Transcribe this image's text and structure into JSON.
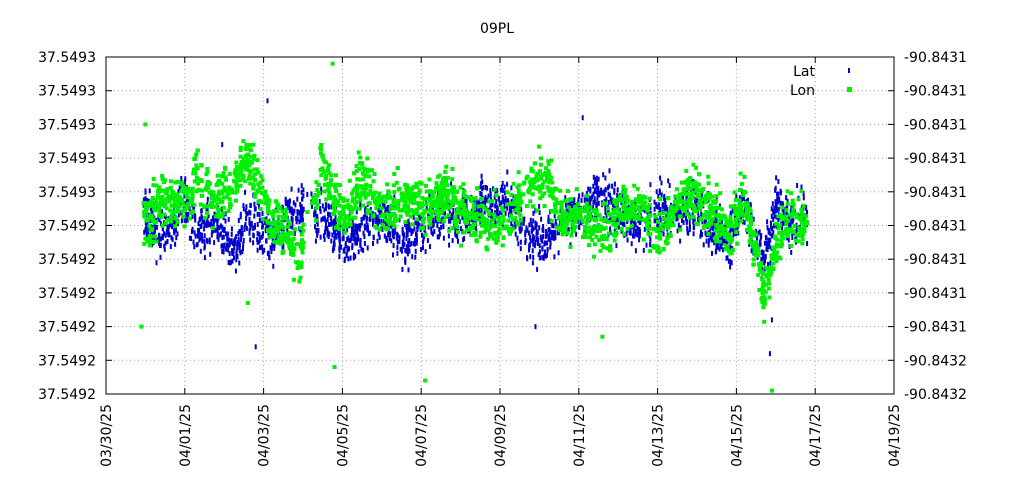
{
  "chart_data": {
    "type": "scatter",
    "title": "09PL",
    "xlabel": "",
    "ylabel": "",
    "grid": true,
    "legend_position": "top-right",
    "x_ticks": [
      "03/30/25",
      "04/01/25",
      "04/03/25",
      "04/05/25",
      "04/07/25",
      "04/09/25",
      "04/11/25",
      "04/13/25",
      "04/15/25",
      "04/17/25",
      "04/19/25"
    ],
    "xlim": [
      "03/30/25",
      "04/19/25"
    ],
    "y_left_ticks": [
      "37.5493",
      "37.5493",
      "37.5493",
      "37.5493",
      "37.5493",
      "37.5492",
      "37.5492",
      "37.5492",
      "37.5492",
      "37.5492",
      "37.5492"
    ],
    "y_right_ticks": [
      "-90.8431",
      "-90.8431",
      "-90.8431",
      "-90.8431",
      "-90.8431",
      "-90.8431",
      "-90.8431",
      "-90.8431",
      "-90.8431",
      "-90.8432",
      "-90.8432"
    ],
    "series": [
      {
        "name": "Lat",
        "axis": "left",
        "color": "#0000cc",
        "marker": "vertical-dash",
        "level_by_day": [
          [
            0.95,
            0.54
          ],
          [
            1.5,
            0.46
          ],
          [
            2.0,
            0.58
          ],
          [
            2.3,
            0.47
          ],
          [
            2.8,
            0.52
          ],
          [
            3.3,
            0.42
          ],
          [
            3.6,
            0.52
          ],
          [
            4.2,
            0.46
          ],
          [
            4.6,
            0.52
          ],
          [
            4.9,
            0.56
          ],
          [
            5.5,
            0.52
          ],
          [
            6.0,
            0.45
          ],
          [
            6.5,
            0.5
          ],
          [
            7.0,
            0.53
          ],
          [
            7.6,
            0.46
          ],
          [
            8.1,
            0.5
          ],
          [
            8.6,
            0.55
          ],
          [
            9.2,
            0.51
          ],
          [
            9.6,
            0.56
          ],
          [
            10.2,
            0.57
          ],
          [
            10.7,
            0.46
          ],
          [
            11.2,
            0.45
          ],
          [
            11.6,
            0.52
          ],
          [
            12.1,
            0.54
          ],
          [
            12.5,
            0.59
          ],
          [
            13.0,
            0.53
          ],
          [
            13.5,
            0.49
          ],
          [
            14.0,
            0.56
          ],
          [
            14.5,
            0.53
          ],
          [
            14.9,
            0.55
          ],
          [
            15.3,
            0.5
          ],
          [
            15.8,
            0.46
          ],
          [
            16.2,
            0.56
          ],
          [
            16.7,
            0.4
          ],
          [
            17.0,
            0.56
          ],
          [
            17.3,
            0.5
          ],
          [
            17.8,
            0.54
          ]
        ],
        "spread": 0.1,
        "outliers": [
          [
            3.8,
            0.14
          ],
          [
            16.9,
            0.22
          ],
          [
            16.85,
            0.12
          ],
          [
            12.1,
            0.82
          ],
          [
            10.9,
            0.2
          ],
          [
            4.1,
            0.87
          ],
          [
            2.95,
            0.74
          ]
        ]
      },
      {
        "name": "Lon",
        "axis": "right",
        "color": "#00ee00",
        "marker": "square",
        "level_by_day": [
          [
            0.95,
            0.5
          ],
          [
            1.5,
            0.59
          ],
          [
            2.0,
            0.56
          ],
          [
            2.3,
            0.63
          ],
          [
            2.8,
            0.58
          ],
          [
            3.3,
            0.63
          ],
          [
            3.6,
            0.7
          ],
          [
            4.2,
            0.51
          ],
          [
            4.6,
            0.48
          ],
          [
            4.9,
            0.4
          ],
          [
            5.5,
            0.67
          ],
          [
            6.0,
            0.52
          ],
          [
            6.5,
            0.64
          ],
          [
            7.0,
            0.54
          ],
          [
            7.6,
            0.58
          ],
          [
            8.1,
            0.55
          ],
          [
            8.6,
            0.6
          ],
          [
            9.2,
            0.52
          ],
          [
            9.6,
            0.5
          ],
          [
            10.2,
            0.51
          ],
          [
            10.7,
            0.62
          ],
          [
            11.2,
            0.64
          ],
          [
            11.6,
            0.51
          ],
          [
            12.1,
            0.54
          ],
          [
            12.5,
            0.48
          ],
          [
            13.0,
            0.52
          ],
          [
            13.5,
            0.57
          ],
          [
            14.0,
            0.48
          ],
          [
            14.5,
            0.56
          ],
          [
            14.9,
            0.6
          ],
          [
            15.3,
            0.55
          ],
          [
            15.8,
            0.49
          ],
          [
            16.2,
            0.58
          ],
          [
            16.7,
            0.3
          ],
          [
            17.0,
            0.42
          ],
          [
            17.3,
            0.53
          ],
          [
            17.8,
            0.51
          ]
        ],
        "spread": 0.1,
        "outliers": [
          [
            5.75,
            0.98
          ],
          [
            5.8,
            0.08
          ],
          [
            8.1,
            0.04
          ],
          [
            16.9,
            0.01
          ],
          [
            1.0,
            0.8
          ],
          [
            12.6,
            0.17
          ],
          [
            3.6,
            0.27
          ],
          [
            0.9,
            0.2
          ]
        ]
      }
    ]
  }
}
